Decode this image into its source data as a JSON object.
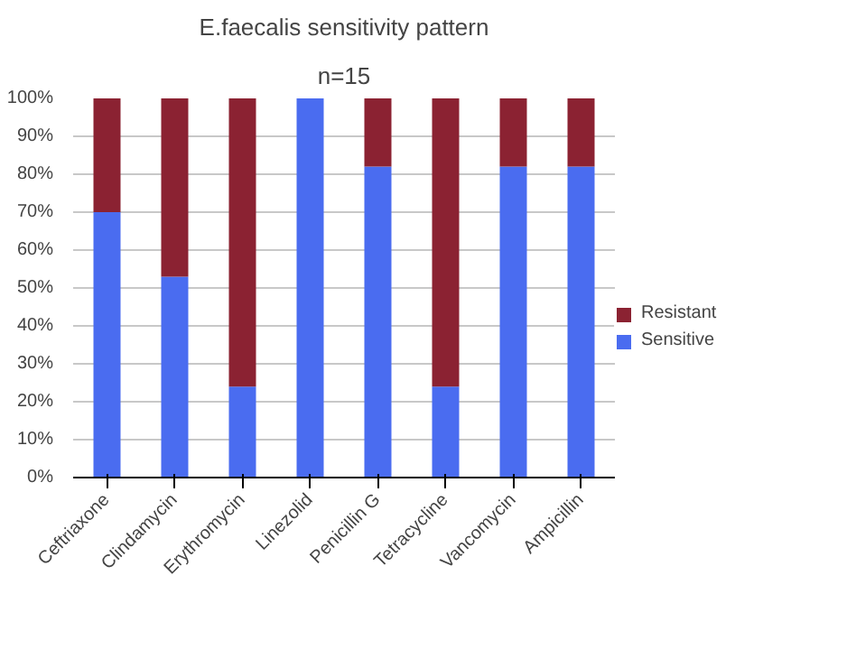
{
  "chart_data": {
    "type": "bar",
    "title": "E.faecalis sensitivity pattern",
    "subtitle": "n=15",
    "categories": [
      "Ceftriaxone",
      "Clindamycin",
      "Erythromycin",
      "Linezolid",
      "Penicillin G",
      "Tetracycline",
      "Vancomycin",
      "Ampicillin"
    ],
    "stacked": true,
    "series": [
      {
        "name": "Sensitive",
        "color": "#4a6cf0",
        "values": [
          70,
          53,
          24,
          100,
          82,
          24,
          82,
          82
        ]
      },
      {
        "name": "Resistant",
        "color": "#8b2232",
        "values": [
          30,
          47,
          76,
          0,
          18,
          76,
          18,
          18
        ]
      }
    ],
    "ylim": [
      0,
      100
    ],
    "yticks": [
      {
        "value": 0,
        "label": "0%"
      },
      {
        "value": 10,
        "label": "10%"
      },
      {
        "value": 20,
        "label": "20%"
      },
      {
        "value": 30,
        "label": "30%"
      },
      {
        "value": 40,
        "label": "40%"
      },
      {
        "value": 50,
        "label": "50%"
      },
      {
        "value": 60,
        "label": "60%"
      },
      {
        "value": 70,
        "label": "70%"
      },
      {
        "value": 80,
        "label": "80%"
      },
      {
        "value": 90,
        "label": "90%"
      },
      {
        "value": 100,
        "label": "100%"
      }
    ],
    "grid": "y",
    "legend": "right"
  }
}
